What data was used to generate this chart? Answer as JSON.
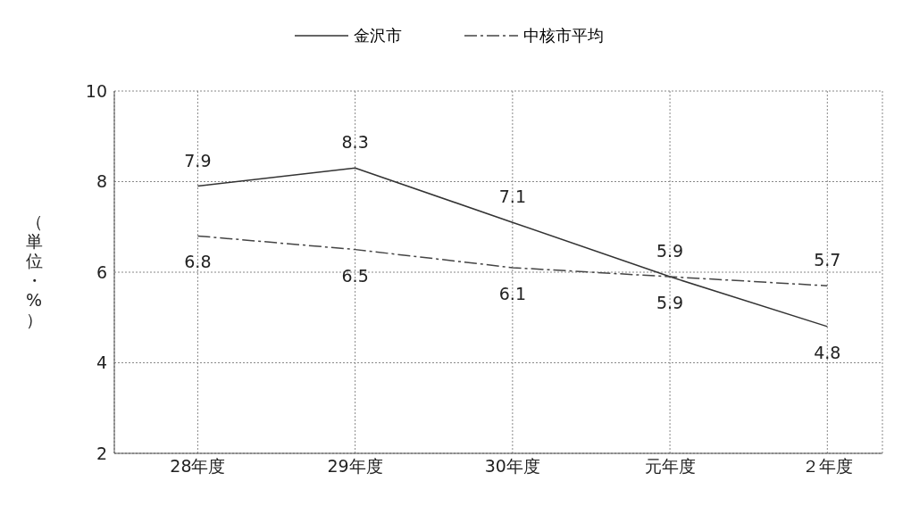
{
  "chart_data": {
    "type": "line",
    "ylabel": "（単位・%）",
    "categories": [
      "28年度",
      "29年度",
      "30年度",
      "元年度",
      "２年度"
    ],
    "series": [
      {
        "name": "金沢市",
        "color": "#333333",
        "values": [
          7.9,
          8.3,
          7.1,
          5.9,
          4.8
        ],
        "line_style": "solid"
      },
      {
        "name": "中核市平均",
        "color": "#444444",
        "values": [
          6.8,
          6.5,
          6.1,
          5.9,
          5.7
        ],
        "line_style": "dashed"
      }
    ],
    "ylim": [
      2,
      10
    ],
    "yticks": [
      2,
      4,
      6,
      8,
      10
    ],
    "grid": true,
    "legend": "top",
    "data_labels": true,
    "marker": "none"
  }
}
